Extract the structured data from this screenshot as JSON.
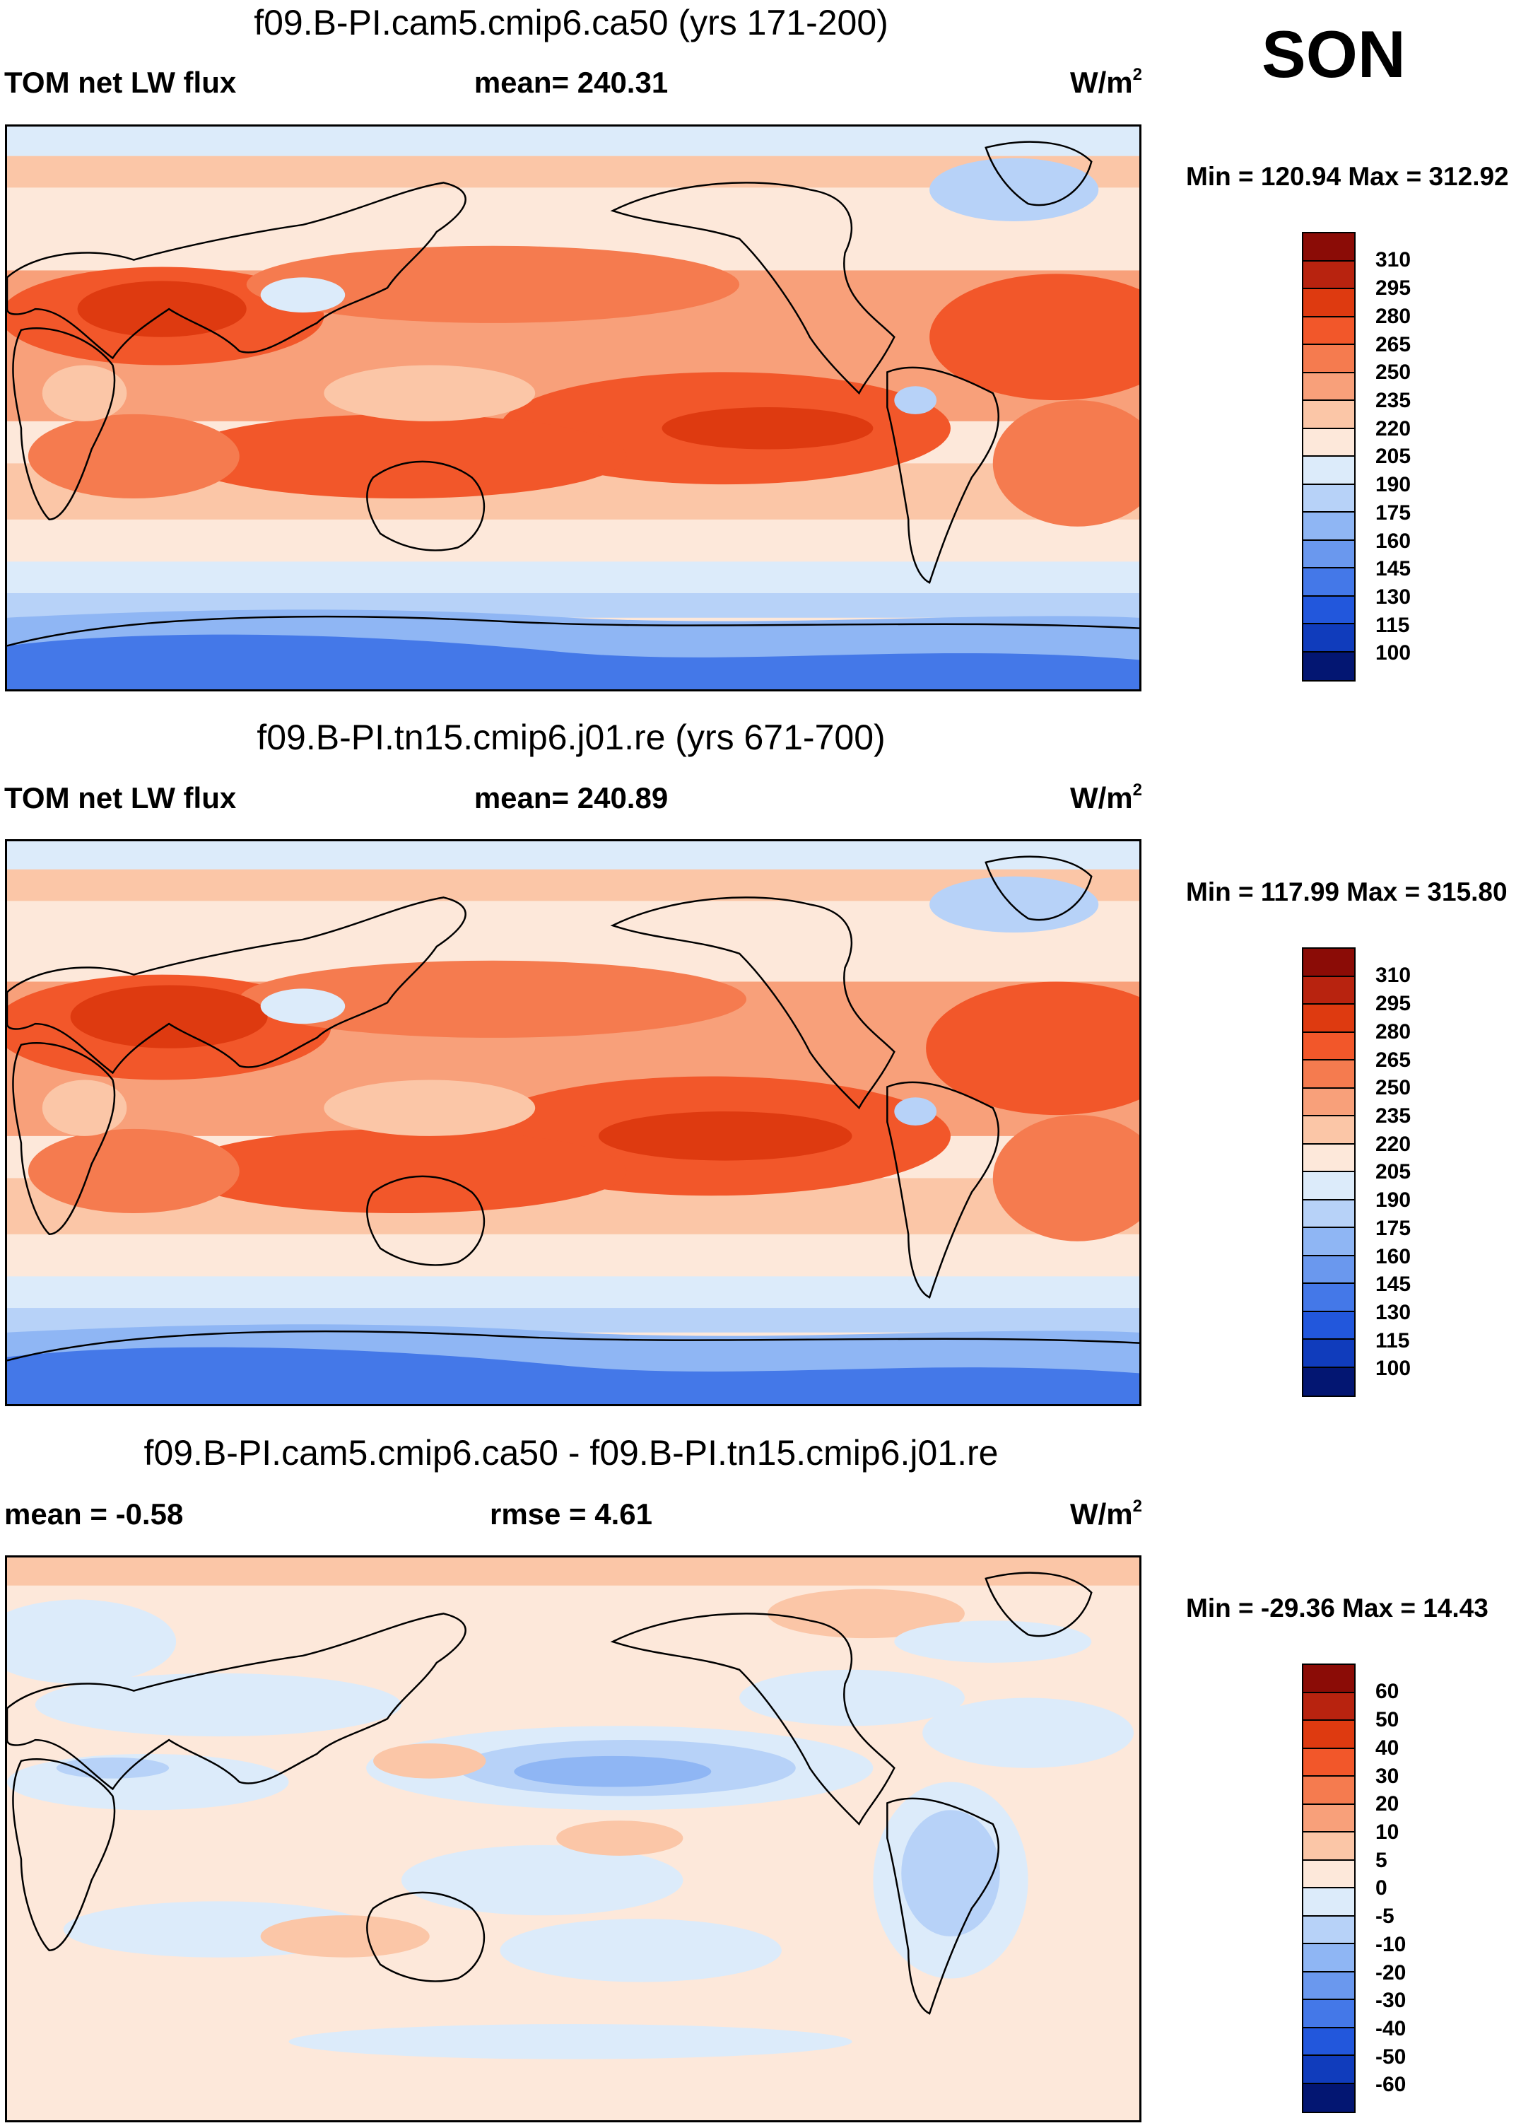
{
  "season": "SON",
  "panels": [
    {
      "title": "f09.B-PI.cam5.cmip6.ca50 (yrs 171-200)",
      "left_label": "TOM net LW flux",
      "center_label": "mean= 240.31",
      "units_base": "W/m",
      "units_exp": "2",
      "minmax": "Min = 120.94 Max = 312.92",
      "colorbar": "abs"
    },
    {
      "title": "f09.B-PI.tn15.cmip6.j01.re (yrs 671-700)",
      "left_label": "TOM net LW flux",
      "center_label": "mean= 240.89",
      "units_base": "W/m",
      "units_exp": "2",
      "minmax": "Min = 117.99 Max = 315.80",
      "colorbar": "abs"
    },
    {
      "title": "f09.B-PI.cam5.cmip6.ca50 - f09.B-PI.tn15.cmip6.j01.re",
      "left_label": "mean =  -0.58",
      "center_label": "rmse =   4.61",
      "units_base": "W/m",
      "units_exp": "2",
      "minmax": "Min = -29.36 Max =  14.43",
      "colorbar": "diff"
    }
  ],
  "colorbars": {
    "abs": {
      "labels": [
        "310",
        "295",
        "280",
        "265",
        "250",
        "235",
        "220",
        "205",
        "190",
        "175",
        "160",
        "145",
        "130",
        "115",
        "100"
      ],
      "colors": [
        "#8b0c06",
        "#b8230f",
        "#de3a10",
        "#f2572a",
        "#f57b4f",
        "#f8a07a",
        "#fbc6a7",
        "#fde8da",
        "#dcebfa",
        "#b7d2f8",
        "#8fb6f4",
        "#6a98ee",
        "#4478e8",
        "#2257dc",
        "#103cbc",
        "#031672"
      ]
    },
    "diff": {
      "labels": [
        "60",
        "50",
        "40",
        "30",
        "20",
        "10",
        "5",
        "0",
        "-5",
        "-10",
        "-20",
        "-30",
        "-40",
        "-50",
        "-60"
      ],
      "colors": [
        "#8b0c06",
        "#b8230f",
        "#de3a10",
        "#f2572a",
        "#f57b4f",
        "#f8a07a",
        "#fbc6a7",
        "#fde8da",
        "#dcebfa",
        "#b7d2f8",
        "#8fb6f4",
        "#6a98ee",
        "#4478e8",
        "#2257dc",
        "#103cbc",
        "#031672"
      ]
    }
  },
  "map_data": {
    "projection": "cylindrical equidistant, Pacific-centered (central longitude 180)",
    "field": "TOM net LW flux",
    "legend_position": "right"
  }
}
